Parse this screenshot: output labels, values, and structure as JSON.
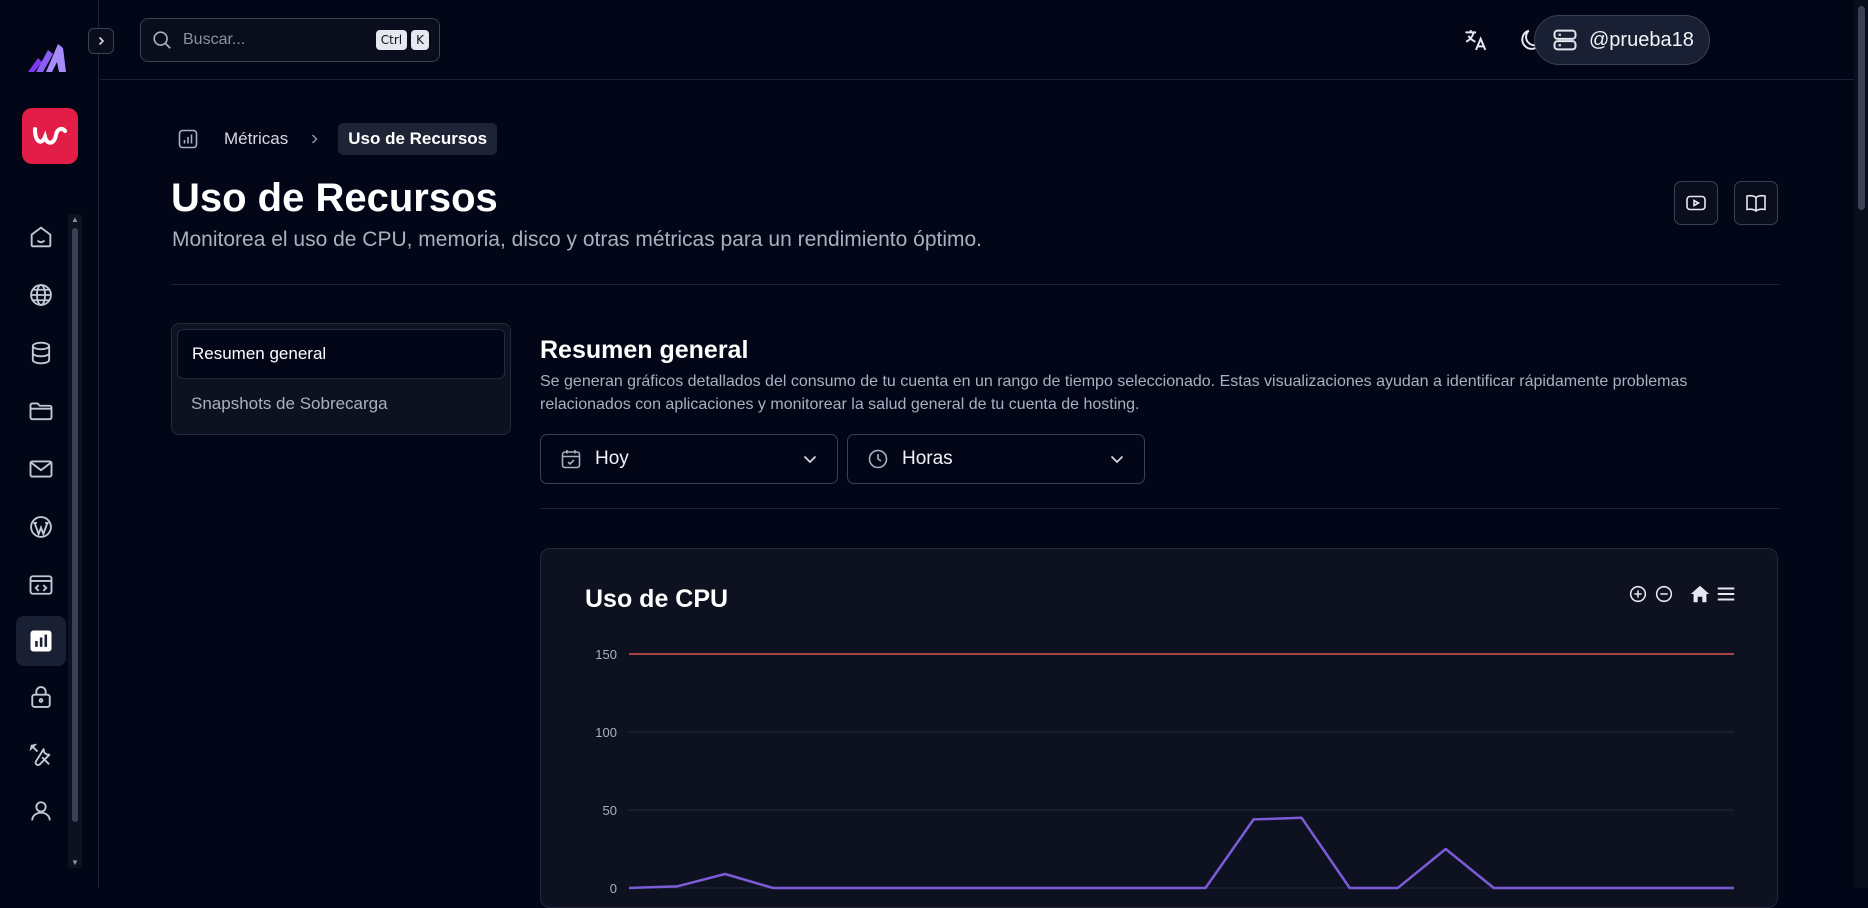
{
  "topbar": {
    "search_placeholder": "Buscar...",
    "shortcut_ctrl": "Ctrl",
    "shortcut_key": "K",
    "username": "@prueba18",
    "notification_dot_color": "#22c55e"
  },
  "sidebar": {
    "items": [
      {
        "icon": "home-icon"
      },
      {
        "icon": "globe-icon"
      },
      {
        "icon": "database-icon"
      },
      {
        "icon": "folder-icon"
      },
      {
        "icon": "mail-icon"
      },
      {
        "icon": "wordpress-icon"
      },
      {
        "icon": "code-window-icon"
      },
      {
        "icon": "bar-chart-icon",
        "active": true
      },
      {
        "icon": "lock-icon"
      },
      {
        "icon": "tools-icon"
      },
      {
        "icon": "user-icon"
      }
    ]
  },
  "breadcrumb": {
    "parent": "Métricas",
    "current": "Uso de Recursos"
  },
  "page": {
    "title": "Uso de Recursos",
    "subtitle": "Monitorea el uso de CPU, memoria, disco y otras métricas para un rendimiento óptimo."
  },
  "side_menu": {
    "items": [
      "Resumen general",
      "Snapshots de Sobrecarga"
    ],
    "active_index": 0
  },
  "section": {
    "title": "Resumen general",
    "description": "Se generan gráficos detallados del consumo de tu cuenta en un rango de tiempo seleccionado. Estas visualizaciones ayudan a identificar rápidamente problemas relacionados con aplicaciones y monitorear la salud general de tu cuenta de hosting."
  },
  "filters": {
    "date_range": "Hoy",
    "granularity": "Horas"
  },
  "chart_data": {
    "type": "line",
    "title": "Uso de CPU",
    "ylim": [
      0,
      150
    ],
    "yticks": [
      "150",
      "100",
      "50",
      "0"
    ],
    "limit_value": 150,
    "limit_color": "#e05252",
    "series_color": "#7c5cd6",
    "grid": true,
    "series": [
      {
        "values": [
          0,
          1,
          9,
          0,
          0,
          0,
          0,
          0,
          0,
          0,
          0,
          0,
          0,
          44,
          45,
          0,
          0,
          25,
          0,
          0,
          0,
          0,
          0,
          0
        ]
      }
    ]
  }
}
